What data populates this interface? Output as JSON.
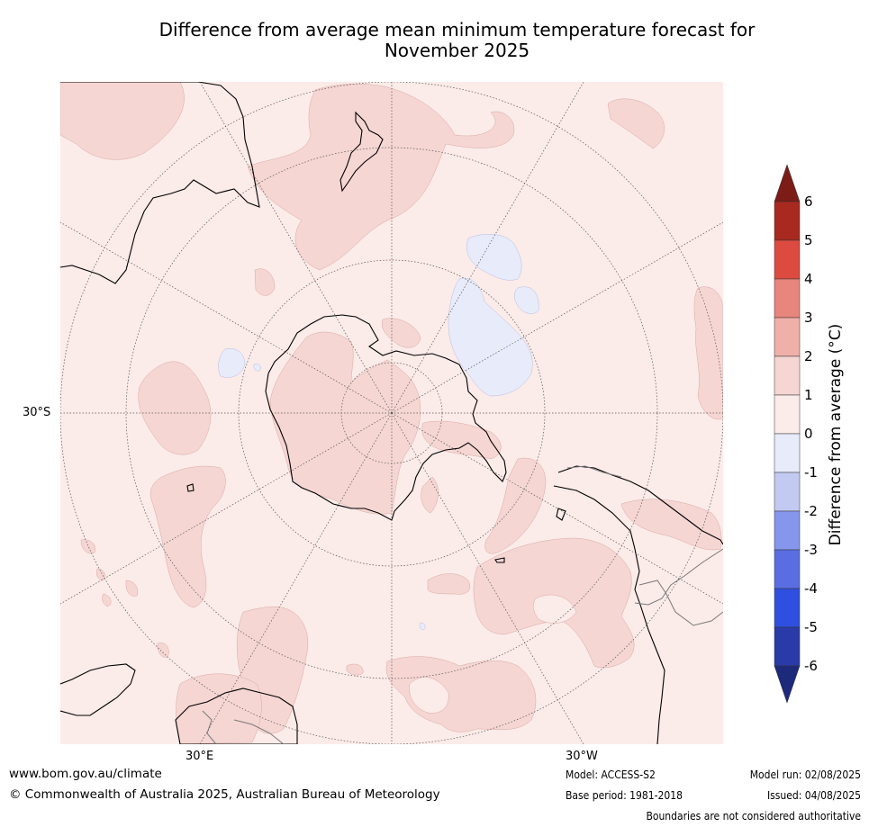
{
  "title": {
    "line1": "Difference from average mean minimum temperature forecast for",
    "line2": "November 2025"
  },
  "map": {
    "projection": "south-polar-stereographic",
    "background_anomaly_class": "0 to 1",
    "latitude_label": "30°S",
    "longitude_labels": [
      "30°E",
      "30°W"
    ]
  },
  "colorbar": {
    "label": "Difference from average (°C)",
    "ticks": [
      "6",
      "5",
      "4",
      "3",
      "2",
      "1",
      "0",
      "-1",
      "-2",
      "-3",
      "-4",
      "-5",
      "-6"
    ],
    "bins": [
      {
        "range": ">6",
        "color": "#7b1c17"
      },
      {
        "range": "5 to 6",
        "color": "#a8291f"
      },
      {
        "range": "4 to 5",
        "color": "#dd4b40"
      },
      {
        "range": "3 to 4",
        "color": "#e8857c"
      },
      {
        "range": "2 to 3",
        "color": "#efb0a9"
      },
      {
        "range": "1 to 2",
        "color": "#f5d6d3"
      },
      {
        "range": "0 to 1",
        "color": "#fbebe9"
      },
      {
        "range": "-1 to 0",
        "color": "#e8ebfa"
      },
      {
        "range": "-2 to -1",
        "color": "#c3caf2"
      },
      {
        "range": "-3 to -2",
        "color": "#8696ec"
      },
      {
        "range": "-4 to -3",
        "color": "#5a6ee2"
      },
      {
        "range": "-5 to -4",
        "color": "#2f4fe0"
      },
      {
        "range": "-6 to -5",
        "color": "#2a3aa8"
      },
      {
        "range": "<-6",
        "color": "#1d2a7c"
      }
    ]
  },
  "footer": {
    "website": "www.bom.gov.au/climate",
    "copyright": "© Commonwealth of Australia 2025, Australian Bureau of Meteorology",
    "model": "Model: ACCESS-S2",
    "base_period": "Base period: 1981-2018",
    "model_run": "Model run: 02/08/2025",
    "issued": "Issued: 04/08/2025",
    "disclaimer": "Boundaries are not considered authoritative"
  }
}
